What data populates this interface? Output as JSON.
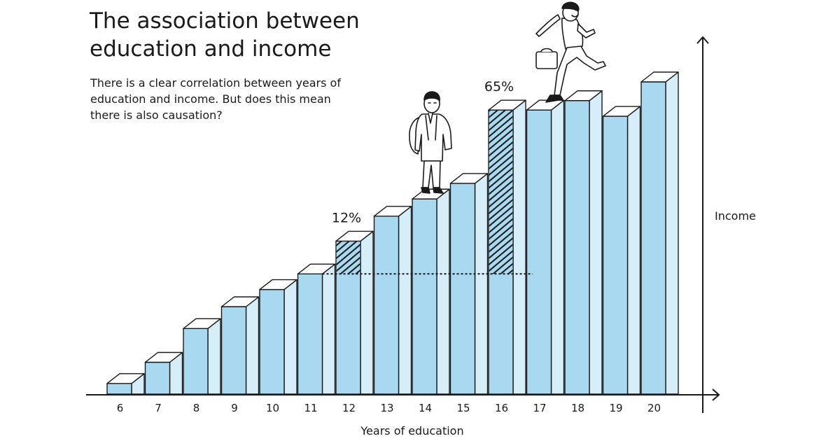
{
  "title": "The association between education and income",
  "subtitle": "There is a clear correlation between years of education and income. But does this mean there is also causation?",
  "colors": {
    "bar_front": "#a8d9f0",
    "bar_side": "#d6eef9",
    "bar_top": "#ffffff",
    "outline": "#1a1a1a"
  },
  "chart_data": {
    "type": "bar",
    "title": "The association between education and income",
    "xlabel": "Years of education",
    "ylabel": "Income",
    "categories": [
      "6",
      "7",
      "8",
      "9",
      "10",
      "11",
      "12",
      "13",
      "14",
      "15",
      "16",
      "17",
      "18",
      "19",
      "20"
    ],
    "values": [
      3.4,
      10.2,
      21.0,
      28.0,
      33.5,
      38.5,
      49.0,
      57.0,
      62.5,
      67.5,
      91.0,
      91.0,
      94.0,
      89.0,
      100.0
    ],
    "ylim": [
      0,
      105
    ],
    "baseline": "11",
    "annotations": [
      {
        "category": "12",
        "label": "12%"
      },
      {
        "category": "16",
        "label": "65%"
      }
    ],
    "grid": false,
    "legend": "none"
  }
}
